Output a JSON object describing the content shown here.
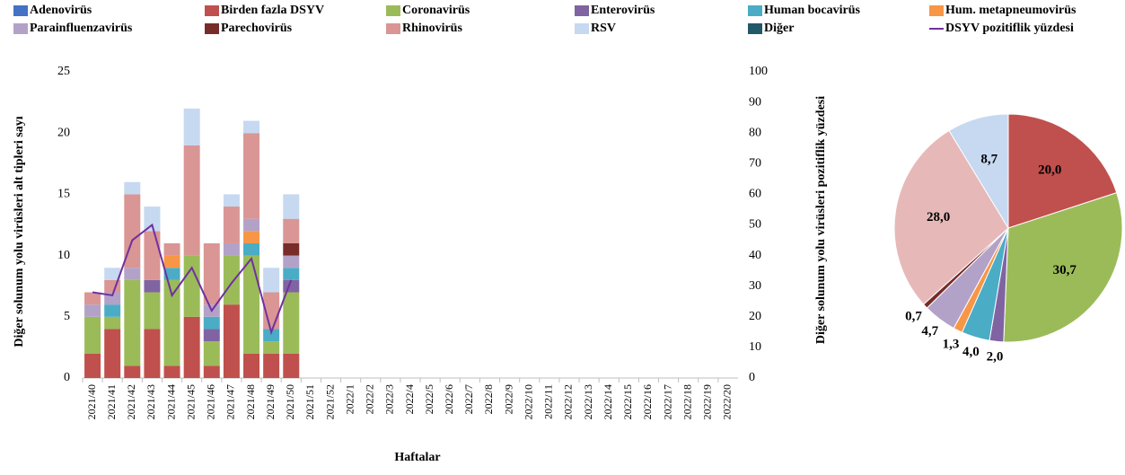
{
  "chart_data": [
    {
      "type": "bar",
      "stacked": true,
      "x_label": "Haftalar",
      "y_label": "Diğer solunum yolu virüsleri alt tipleri sayı",
      "y2_label": "Diğer solunum yolu virüsleri pozitiflik yüzdesi",
      "categories": [
        "2021/40",
        "2021/41",
        "2021/42",
        "2021/43",
        "2021/44",
        "2021/45",
        "2021/46",
        "2021/47",
        "2021/48",
        "2021/49",
        "2021/50",
        "2021/51",
        "2021/52",
        "2022/1",
        "2022/2",
        "2022/3",
        "2022/4",
        "2022/5",
        "2022/6",
        "2022/7",
        "2022/8",
        "2022/9",
        "2022/10",
        "2022/11",
        "2022/12",
        "2022/13",
        "2022/14",
        "2022/15",
        "2022/16",
        "2022/17",
        "2022/18",
        "2022/19",
        "2022/20"
      ],
      "ylim": [
        0,
        25
      ],
      "yticks": [
        0,
        5,
        10,
        15,
        20,
        25
      ],
      "y2lim": [
        0,
        100
      ],
      "y2ticks": [
        0,
        10,
        20,
        30,
        40,
        50,
        60,
        70,
        80,
        90,
        100
      ],
      "grid": false,
      "legend": "top",
      "series": [
        {
          "name": "Adenovirüs",
          "color": "#4472c4",
          "values": [
            0,
            0,
            0,
            0,
            0,
            0,
            0,
            0,
            0,
            0,
            0,
            null,
            null,
            null,
            null,
            null,
            null,
            null,
            null,
            null,
            null,
            null,
            null,
            null,
            null,
            null,
            null,
            null,
            null,
            null,
            null,
            null,
            null
          ]
        },
        {
          "name": "Birden fazla DSYV",
          "color": "#c0504d",
          "values": [
            2,
            4,
            1,
            4,
            1,
            5,
            1,
            6,
            2,
            2,
            2,
            null,
            null,
            null,
            null,
            null,
            null,
            null,
            null,
            null,
            null,
            null,
            null,
            null,
            null,
            null,
            null,
            null,
            null,
            null,
            null,
            null,
            null
          ]
        },
        {
          "name": "Coronavirüs",
          "color": "#9bbb59",
          "values": [
            3,
            1,
            7,
            3,
            7,
            5,
            2,
            4,
            8,
            1,
            5,
            null,
            null,
            null,
            null,
            null,
            null,
            null,
            null,
            null,
            null,
            null,
            null,
            null,
            null,
            null,
            null,
            null,
            null,
            null,
            null,
            null,
            null
          ]
        },
        {
          "name": "Enterovirüs",
          "color": "#8064a2",
          "values": [
            0,
            0,
            0,
            1,
            0,
            0,
            1,
            0,
            0,
            0,
            1,
            null,
            null,
            null,
            null,
            null,
            null,
            null,
            null,
            null,
            null,
            null,
            null,
            null,
            null,
            null,
            null,
            null,
            null,
            null,
            null,
            null,
            null
          ]
        },
        {
          "name": "Human bocavirüs",
          "color": "#4bacc6",
          "values": [
            0,
            1,
            0,
            0,
            1,
            0,
            1,
            0,
            1,
            1,
            1,
            null,
            null,
            null,
            null,
            null,
            null,
            null,
            null,
            null,
            null,
            null,
            null,
            null,
            null,
            null,
            null,
            null,
            null,
            null,
            null,
            null,
            null
          ]
        },
        {
          "name": "Hum. metapneumovirüs",
          "color": "#f79646",
          "values": [
            0,
            0,
            0,
            0,
            1,
            0,
            0,
            0,
            1,
            0,
            0,
            null,
            null,
            null,
            null,
            null,
            null,
            null,
            null,
            null,
            null,
            null,
            null,
            null,
            null,
            null,
            null,
            null,
            null,
            null,
            null,
            null,
            null
          ]
        },
        {
          "name": "Parainfluenzavirüs",
          "color": "#b3a2c7",
          "values": [
            1,
            1,
            1,
            0,
            0,
            0,
            1,
            1,
            1,
            0,
            1,
            null,
            null,
            null,
            null,
            null,
            null,
            null,
            null,
            null,
            null,
            null,
            null,
            null,
            null,
            null,
            null,
            null,
            null,
            null,
            null,
            null,
            null
          ]
        },
        {
          "name": "Parechovirüs",
          "color": "#772c2a",
          "values": [
            0,
            0,
            0,
            0,
            0,
            0,
            0,
            0,
            0,
            0,
            1,
            null,
            null,
            null,
            null,
            null,
            null,
            null,
            null,
            null,
            null,
            null,
            null,
            null,
            null,
            null,
            null,
            null,
            null,
            null,
            null,
            null,
            null
          ]
        },
        {
          "name": "Rhinovirüs",
          "color": "#d99694",
          "values": [
            1,
            1,
            6,
            4,
            1,
            9,
            5,
            3,
            7,
            3,
            2,
            null,
            null,
            null,
            null,
            null,
            null,
            null,
            null,
            null,
            null,
            null,
            null,
            null,
            null,
            null,
            null,
            null,
            null,
            null,
            null,
            null,
            null
          ]
        },
        {
          "name": "RSV",
          "color": "#c6d9f1",
          "values": [
            0,
            1,
            1,
            2,
            0,
            3,
            0,
            1,
            1,
            2,
            2,
            null,
            null,
            null,
            null,
            null,
            null,
            null,
            null,
            null,
            null,
            null,
            null,
            null,
            null,
            null,
            null,
            null,
            null,
            null,
            null,
            null,
            null
          ]
        },
        {
          "name": "Diğer",
          "color": "#215968",
          "values": [
            0,
            0,
            0,
            0,
            0,
            0,
            0,
            0,
            0,
            0,
            0,
            null,
            null,
            null,
            null,
            null,
            null,
            null,
            null,
            null,
            null,
            null,
            null,
            null,
            null,
            null,
            null,
            null,
            null,
            null,
            null,
            null,
            null
          ]
        },
        {
          "name": "DSYV pozitiflik yüzdesi",
          "color": "#7030a0",
          "axis": "y2",
          "values": [
            28,
            27,
            45,
            50,
            27,
            36,
            22,
            31,
            39,
            15,
            32,
            null,
            null,
            null,
            null,
            null,
            null,
            null,
            null,
            null,
            null,
            null,
            null,
            null,
            null,
            null,
            null,
            null,
            null,
            null,
            null,
            null,
            null
          ]
        }
      ]
    },
    {
      "type": "pie",
      "values": [
        20.0,
        30.7,
        2.0,
        4.0,
        1.3,
        4.7,
        0.7,
        28.0,
        8.7
      ],
      "value_labels": [
        "20,0",
        "30,7",
        "2,0",
        "4,0",
        "1,3",
        "4,7",
        "0,7",
        "28,0",
        "8,7"
      ],
      "colors": [
        "#c0504d",
        "#9bbb59",
        "#8064a2",
        "#4bacc6",
        "#f79646",
        "#b3a2c7",
        "#772c2a",
        "#e6b9b8",
        "#c6d9f1"
      ]
    }
  ]
}
